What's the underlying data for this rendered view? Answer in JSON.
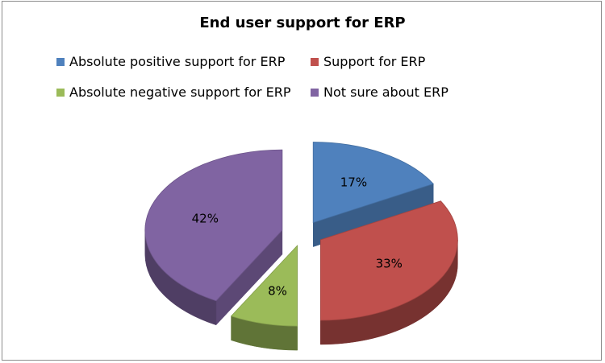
{
  "chart_data": {
    "type": "pie",
    "title": "End user support for ERP",
    "categories": [
      "Absolute positive support for ERP",
      "Support for ERP",
      "Absolute negative support for ERP",
      "Not sure about ERP"
    ],
    "values": [
      17,
      33,
      8,
      42
    ],
    "labels": [
      "17%",
      "33%",
      "8%",
      "42%"
    ],
    "colors": [
      "#4f81bd",
      "#c0504d",
      "#9bbb59",
      "#8064a2"
    ],
    "style": "3d-exploded",
    "legend_position": "top"
  }
}
